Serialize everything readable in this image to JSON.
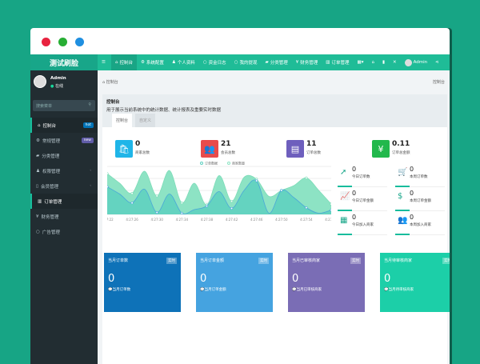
{
  "window": {
    "dot_colors": [
      "#e8233f",
      "#27ae34",
      "#1f8fe0"
    ]
  },
  "app": {
    "title": "测试刷脸"
  },
  "topnav": {
    "items": [
      {
        "icon": "menu-icon",
        "label": ""
      },
      {
        "icon": "home-icon",
        "label": "控制台"
      },
      {
        "icon": "gear-icon",
        "label": "系统配置"
      },
      {
        "icon": "user-icon",
        "label": "个人资料"
      },
      {
        "icon": "circle-icon",
        "label": "资金日志"
      },
      {
        "icon": "circle-icon",
        "label": "我的提现"
      },
      {
        "icon": "tag-icon",
        "label": "分类管理"
      },
      {
        "icon": "money-icon",
        "label": "财务管理"
      },
      {
        "icon": "chart-icon",
        "label": "订单管理"
      }
    ],
    "right_user": "Admin"
  },
  "sidebar": {
    "user": "Admin",
    "status": "在线",
    "search_placeholder": "搜索菜单",
    "items": [
      {
        "label": "控制台",
        "icon": "home-icon",
        "badge": "hot",
        "badge_color": "#0073b7"
      },
      {
        "label": "常规管理",
        "icon": "cogs-icon",
        "badge": "new",
        "badge_color": "#605ca8"
      },
      {
        "label": "分类管理",
        "icon": "tag-icon"
      },
      {
        "label": "权限管理",
        "icon": "group-icon",
        "arrow": "‹"
      },
      {
        "label": "会员管理",
        "icon": "phone-icon",
        "arrow": "‹"
      },
      {
        "label": "订单管理",
        "icon": "chart-icon"
      },
      {
        "label": "财务管理",
        "icon": "money-icon"
      },
      {
        "label": "广告管理",
        "icon": "circle-icon"
      }
    ]
  },
  "breadcrumb": {
    "left": "控制台",
    "right": "控制台"
  },
  "panel": {
    "title": "控制台",
    "desc": "用于展示当前系统中的统计数据、统计报表及重要实时数据",
    "tabs": [
      "控制台",
      "自定义"
    ]
  },
  "stats": [
    {
      "value": "0",
      "label": "商家总数",
      "color": "#1fb5e8",
      "icon": "shopping-bag-icon",
      "glyph": "🛍"
    },
    {
      "value": "21",
      "label": "会员总数",
      "color": "#e84b4b",
      "icon": "users-icon",
      "glyph": "👥"
    },
    {
      "value": "11",
      "label": "订单总数",
      "color": "#6e5fbd",
      "icon": "book-icon",
      "glyph": "▤"
    },
    {
      "value": "0.11",
      "label": "订单总金额",
      "color": "#22b84c",
      "icon": "yen-icon",
      "glyph": "¥"
    }
  ],
  "mini_stats": [
    {
      "value": "0",
      "label": "今日订单数",
      "icon": "rocket-icon",
      "glyph": "➚"
    },
    {
      "value": "0",
      "label": "本周订单数",
      "icon": "cart-icon",
      "glyph": "🛒"
    },
    {
      "value": "0",
      "label": "今日订单金额",
      "icon": "line-chart-icon",
      "glyph": "📈"
    },
    {
      "value": "0",
      "label": "本周订单金额",
      "icon": "dollar-icon",
      "glyph": "$"
    },
    {
      "value": "0",
      "label": "今日加入商家",
      "icon": "calendar-icon",
      "glyph": "▦"
    },
    {
      "value": "0",
      "label": "本周加入商家",
      "icon": "users-icon",
      "glyph": "👥"
    }
  ],
  "cards": [
    {
      "title": "当月订单数",
      "badge": "实时",
      "value": "0",
      "sub": "当月订单数",
      "color": "#0e72b8"
    },
    {
      "title": "当月订单金额",
      "badge": "实时",
      "value": "0",
      "sub": "当月订单金额",
      "color": "#45a3e0"
    },
    {
      "title": "当月已审核商家",
      "badge": "实时",
      "value": "0",
      "sub": "当月已审核商家",
      "color": "#7a6db5"
    },
    {
      "title": "当月待审核商家",
      "badge": "实时",
      "value": "0",
      "sub": "当月待审核商家",
      "color": "#1ccfa8"
    }
  ],
  "chart_data": {
    "type": "area",
    "legend": [
      "订单数据",
      "商家数量"
    ],
    "legend_placement": "top",
    "x": [
      "4:27:22",
      "4:27:24",
      "4:27:26",
      "4:27:28",
      "4:27:30",
      "4:27:32",
      "4:27:34",
      "4:27:36",
      "4:27:38",
      "4:27:40",
      "4:27:42",
      "4:27:44",
      "4:27:46",
      "4:27:48",
      "4:27:50",
      "4:27:52",
      "4:27:54",
      "4:27:56",
      "4:27:58"
    ],
    "xticks": [
      "4:27:22",
      "4:27:26",
      "4:27:30",
      "4:27:34",
      "4:27:38",
      "4:27:42",
      "4:27:46",
      "4:27:50",
      "4:27:54",
      "4:27:58"
    ],
    "series": [
      {
        "name": "商家数量",
        "color": "#8de3c4",
        "values": [
          170,
          130,
          88,
          180,
          77,
          183,
          48,
          130,
          40,
          162,
          55,
          155,
          147,
          75,
          100,
          120,
          152,
          100,
          43
        ]
      },
      {
        "name": "订单数据",
        "color": "#5fd0c0",
        "values": [
          115,
          85,
          48,
          105,
          8,
          85,
          5,
          20,
          35,
          95,
          25,
          100,
          140,
          5,
          100,
          70,
          28,
          5,
          18
        ]
      }
    ],
    "ylim": [
      0,
      200
    ],
    "grid": true
  }
}
